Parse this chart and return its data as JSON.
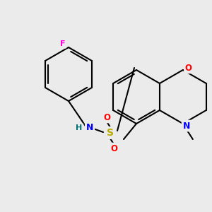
{
  "background_color": "#ebebeb",
  "bond_color": "#000000",
  "colors": {
    "F": "#ff00dd",
    "N": "#0000ff",
    "O": "#ff0000",
    "S": "#bbaa00",
    "H": "#007070"
  },
  "figsize": [
    3.0,
    3.0
  ],
  "dpi": 100
}
